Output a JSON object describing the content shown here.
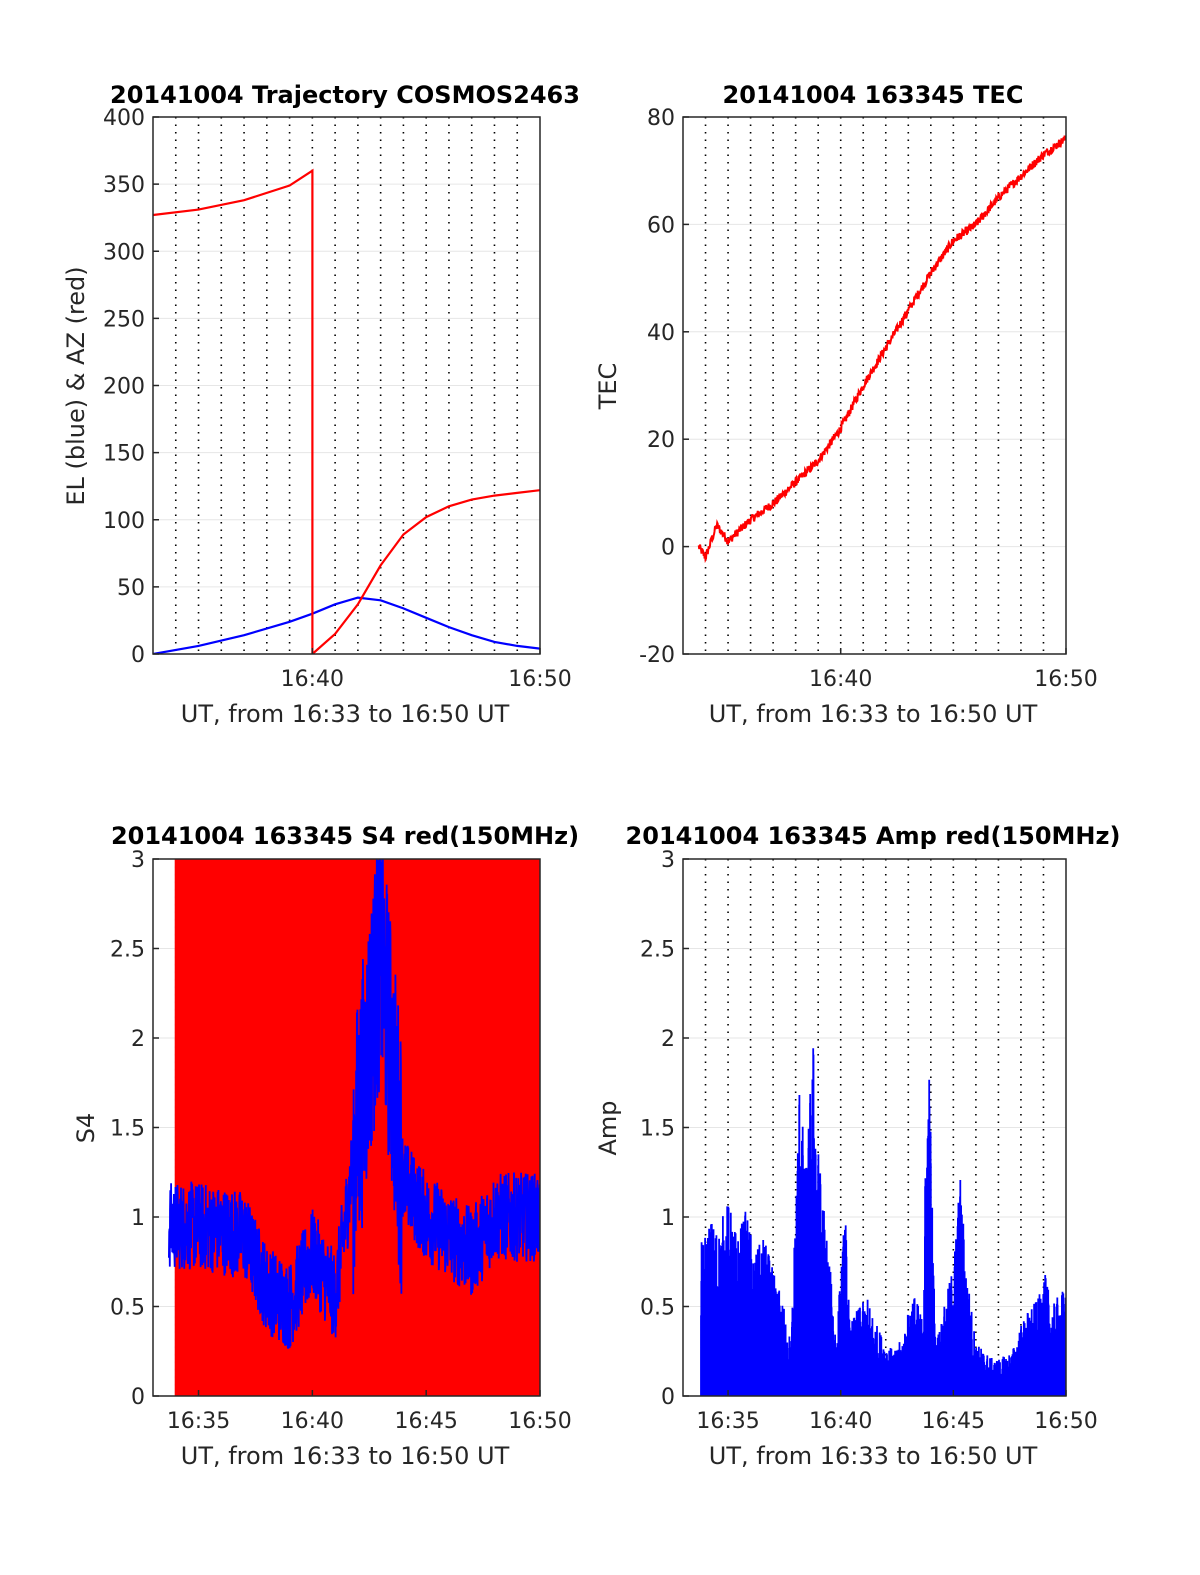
{
  "colors": {
    "red": "#ff0000",
    "blue": "#0000ff",
    "axis": "#262626",
    "grid": "#e6e6e6"
  },
  "chart_data": [
    {
      "type": "line",
      "title": "20141004 Trajectory COSMOS2463",
      "xlabel": "UT, from 16:33 to 16:50 UT",
      "ylabel": "EL (blue) & AZ (red)",
      "xlim": [
        "16:33",
        "16:50"
      ],
      "ylim": [
        0,
        400
      ],
      "yticks": [
        "0",
        "50",
        "100",
        "150",
        "200",
        "250",
        "300",
        "350",
        "400"
      ],
      "xticks": [
        "16:40",
        "16:50"
      ],
      "grid": "dotted vertical at every minute, solid horizontal",
      "series": [
        {
          "color": "blue",
          "x": [
            "16:33",
            "16:35",
            "16:37",
            "16:39",
            "16:40",
            "16:41",
            "16:42",
            "16:43",
            "16:44",
            "16:45",
            "16:46",
            "16:47",
            "16:48",
            "16:49",
            "16:50"
          ],
          "values": [
            0,
            6,
            14,
            24,
            30,
            37,
            42,
            40,
            34,
            27,
            20,
            14,
            9,
            6,
            4
          ]
        },
        {
          "color": "red",
          "x": [
            "16:33",
            "16:35",
            "16:37",
            "16:39",
            "16:40",
            "16:40",
            "16:41",
            "16:42",
            "16:43",
            "16:44",
            "16:45",
            "16:46",
            "16:47",
            "16:48",
            "16:49",
            "16:50"
          ],
          "values": [
            327,
            331,
            338,
            349,
            360,
            0,
            15,
            37,
            66,
            89,
            102,
            110,
            115,
            118,
            120,
            122
          ]
        }
      ]
    },
    {
      "type": "line",
      "title": "20141004 163345 TEC",
      "xlabel": "UT, from 16:33 to 16:50 UT",
      "ylabel": "TEC",
      "xlim": [
        "16:33",
        "16:50"
      ],
      "ylim": [
        -20,
        80
      ],
      "yticks": [
        "-20",
        "0",
        "20",
        "40",
        "60",
        "80"
      ],
      "xticks": [
        "16:40",
        "16:50"
      ],
      "series": [
        {
          "color": "red",
          "x": [
            "16:33.7",
            "16:34",
            "16:34.5",
            "16:35",
            "16:36",
            "16:37",
            "16:38",
            "16:39",
            "16:40",
            "16:41",
            "16:42",
            "16:43",
            "16:44",
            "16:45",
            "16:46",
            "16:47",
            "16:48",
            "16:49",
            "16:50"
          ],
          "values": [
            0,
            -2,
            4,
            1,
            5,
            8,
            12,
            16,
            22,
            30,
            37,
            44,
            51,
            57,
            60,
            65,
            69,
            73,
            76
          ]
        }
      ]
    },
    {
      "type": "line",
      "title": "20141004 163345 S4 red(150MHz)",
      "xlabel": "UT, from 16:33 to 16:50 UT",
      "ylabel": "S4",
      "xlim": [
        "16:33",
        "16:50"
      ],
      "ylim": [
        0,
        3
      ],
      "yticks": [
        "0",
        "0.5",
        "1",
        "1.5",
        "2",
        "2.5",
        "3"
      ],
      "xticks": [
        "16:35",
        "16:40",
        "16:45",
        "16:50"
      ],
      "series": [
        {
          "color": "red",
          "x": [
            "16:34",
            "16:50"
          ],
          "values": [
            "saturated 0 to 3",
            "saturated 0 to 3"
          ]
        },
        {
          "color": "blue",
          "x": [
            "16:33.7",
            "16:35",
            "16:37",
            "16:38",
            "16:39",
            "16:40",
            "16:41",
            "16:42",
            "16:43",
            "16:44",
            "16:45",
            "16:46",
            "16:47",
            "16:48",
            "16:49",
            "16:50"
          ],
          "values": [
            0.95,
            0.95,
            0.9,
            0.6,
            0.5,
            0.8,
            0.55,
            1.5,
            2.5,
            1.2,
            1.0,
            0.9,
            0.8,
            1.0,
            1.0,
            1.0
          ]
        }
      ]
    },
    {
      "type": "line",
      "title": "20141004 163345 Amp red(150MHz)",
      "xlabel": "UT, from 16:33 to 16:50 UT",
      "ylabel": "Amp",
      "xlim": [
        "16:33",
        "16:50"
      ],
      "ylim": [
        0,
        3
      ],
      "yticks": [
        "0",
        "0.5",
        "1",
        "1.5",
        "2",
        "2.5",
        "3"
      ],
      "xticks": [
        "16:35",
        "16:40",
        "16:45",
        "16:50"
      ],
      "series": [
        {
          "color": "blue",
          "x": [
            "16:33.8",
            "16:34.2",
            "16:34.6",
            "16:35",
            "16:35.4",
            "16:35.8",
            "16:36.2",
            "16:36.6",
            "16:37",
            "16:37.4",
            "16:37.8",
            "16:38.2",
            "16:38.4",
            "16:38.8",
            "16:39",
            "16:39.4",
            "16:39.8",
            "16:40.2",
            "16:40.4",
            "16:40.8",
            "16:41.2",
            "16:41.6",
            "16:42",
            "16:42.4",
            "16:42.8",
            "16:43.2",
            "16:43.6",
            "16:43.9",
            "16:44.2",
            "16:44.6",
            "16:45",
            "16:45.3",
            "16:45.6",
            "16:46",
            "16:46.4",
            "16:46.8",
            "16:47.2",
            "16:47.6",
            "16:48",
            "16:48.4",
            "16:48.8",
            "16:49",
            "16:49.4",
            "16:49.8",
            "16:50"
          ],
          "values": [
            0.85,
            1.0,
            0.95,
            1.1,
            0.9,
            1.05,
            0.8,
            0.9,
            0.7,
            0.55,
            0.3,
            1.95,
            1.2,
            2.05,
            1.4,
            0.9,
            0.35,
            1.05,
            0.4,
            0.5,
            0.55,
            0.4,
            0.3,
            0.25,
            0.35,
            0.6,
            0.45,
            2.05,
            0.3,
            0.5,
            0.75,
            1.25,
            0.7,
            0.3,
            0.25,
            0.2,
            0.22,
            0.25,
            0.4,
            0.5,
            0.55,
            0.72,
            0.5,
            0.6,
            0.58
          ]
        }
      ]
    }
  ]
}
